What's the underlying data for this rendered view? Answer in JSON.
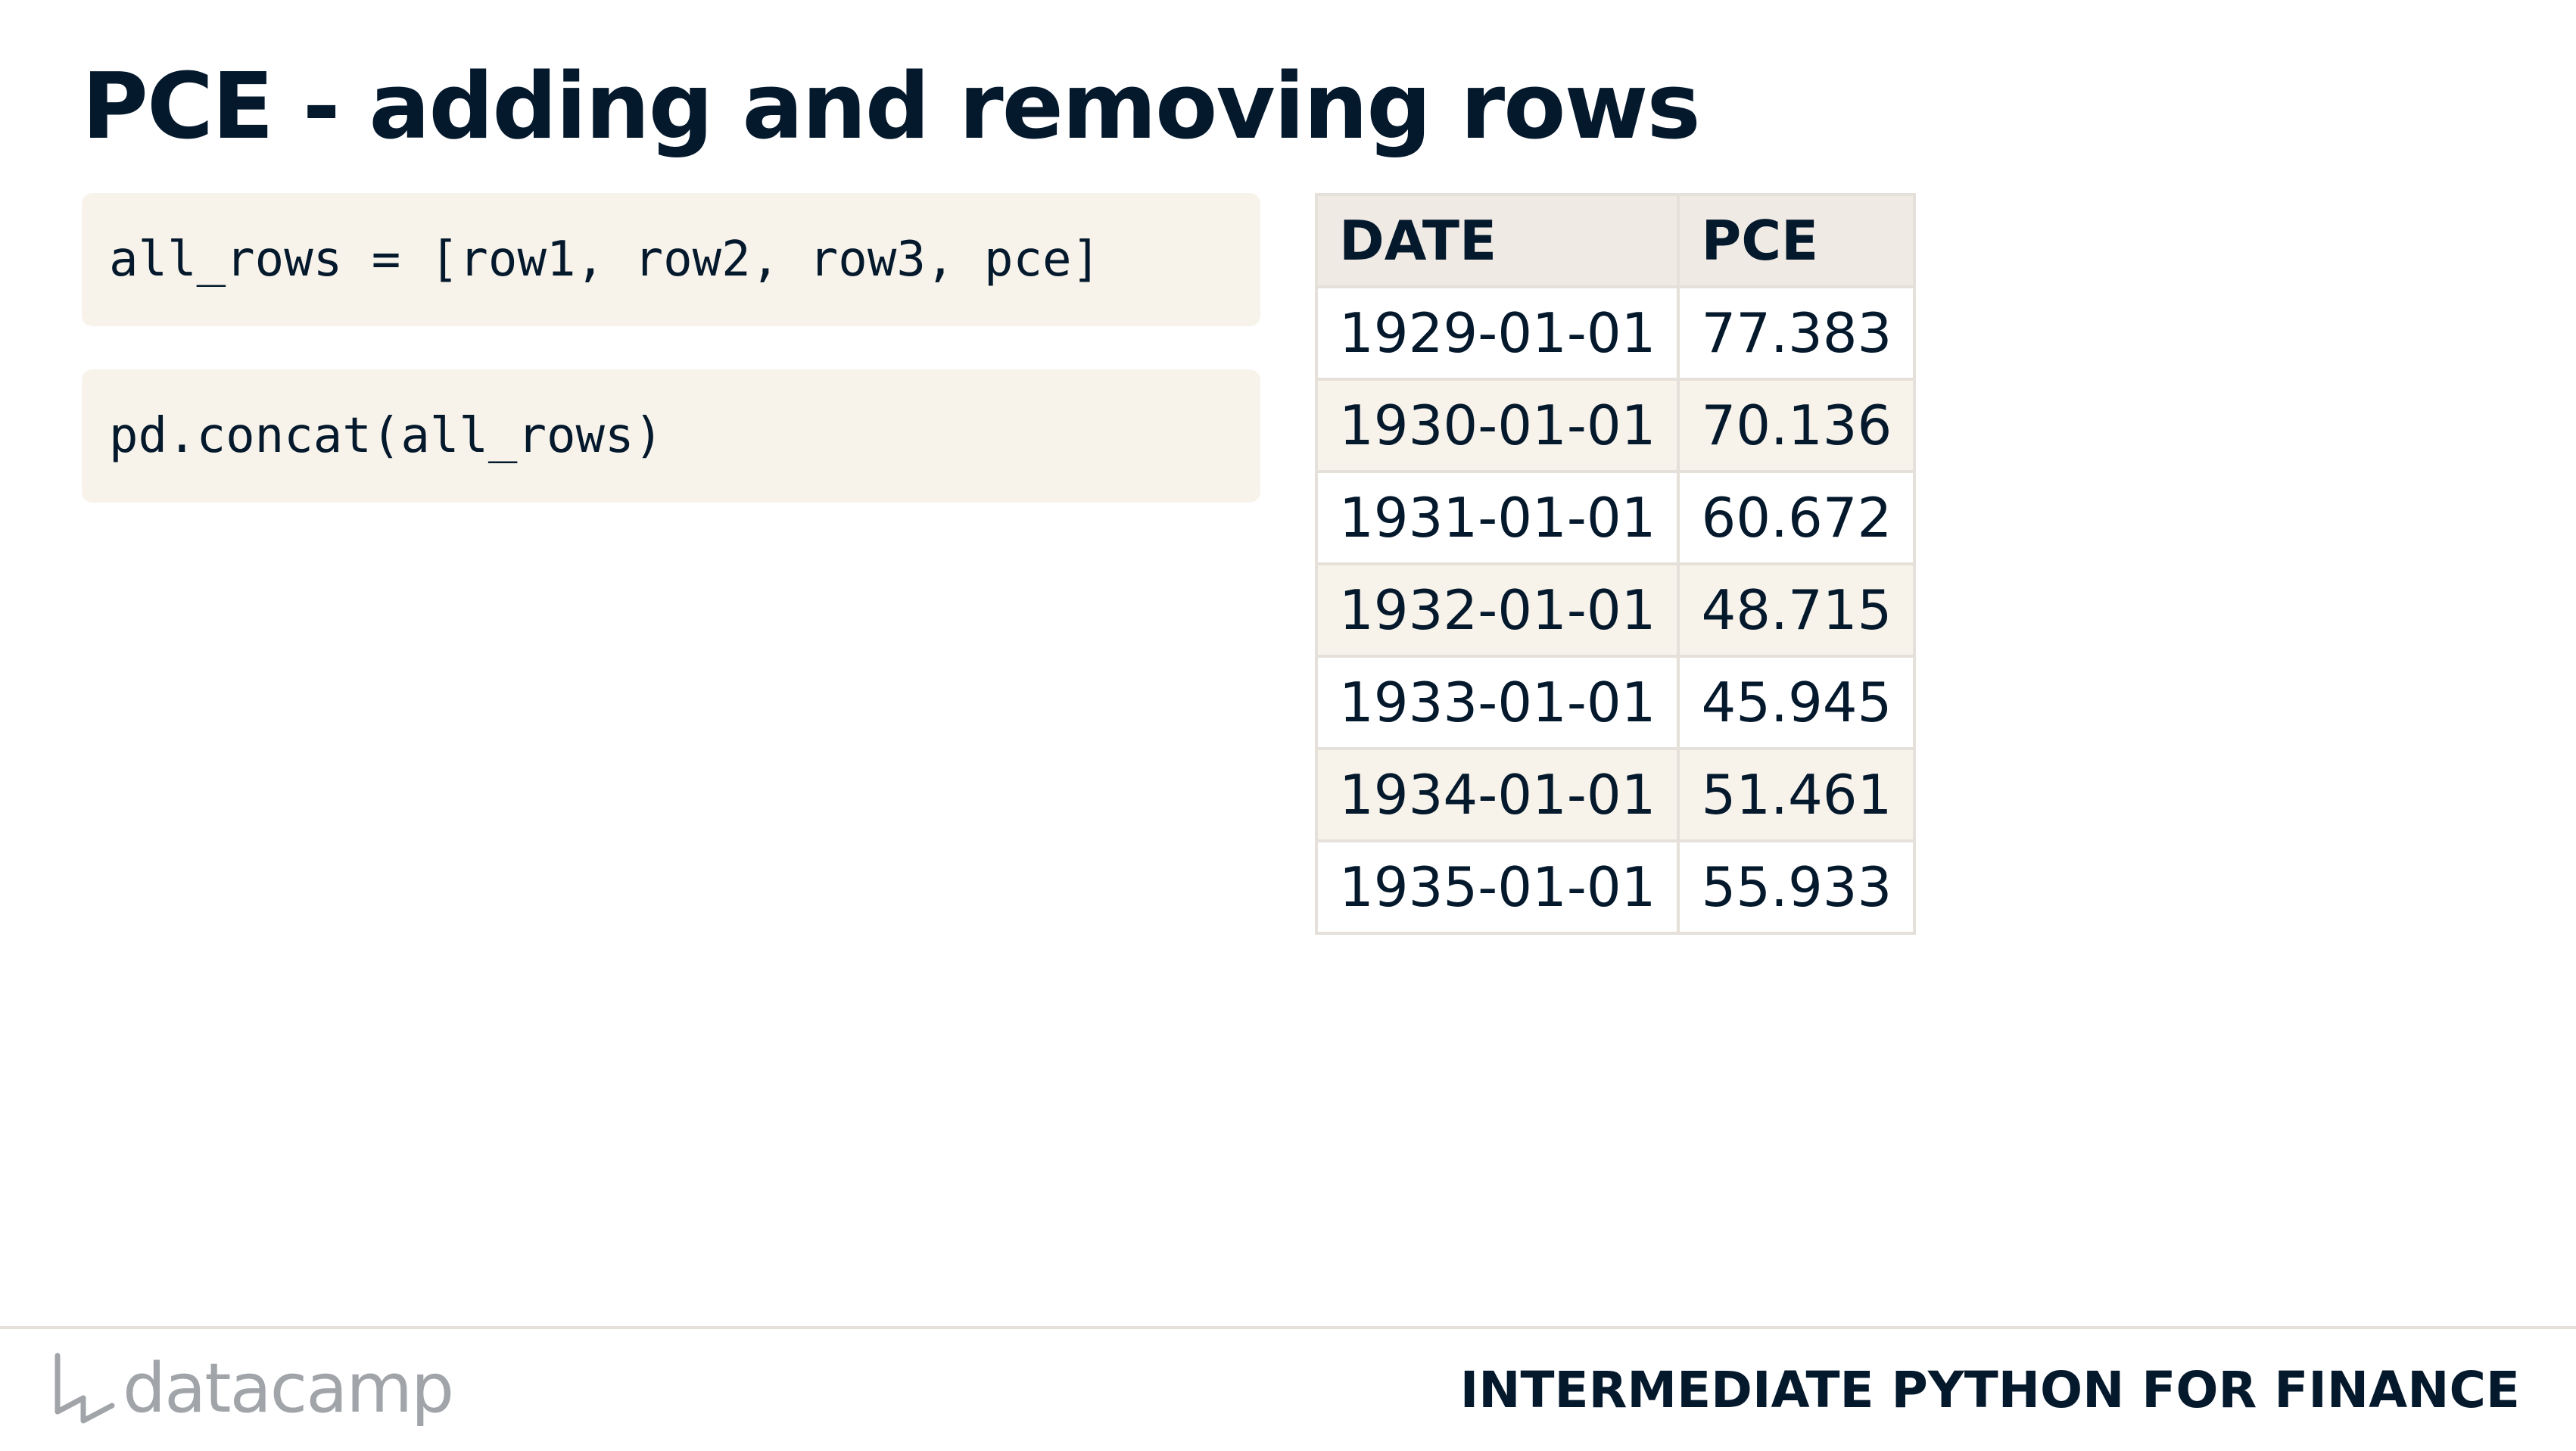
{
  "slide": {
    "title": "PCE - adding and removing rows"
  },
  "code_blocks": [
    {
      "code": "all_rows = [row1, row2, row3, pce]"
    },
    {
      "code": "pd.concat(all_rows)"
    }
  ],
  "table": {
    "columns": [
      "DATE",
      "PCE"
    ],
    "rows": [
      [
        "1929-01-01",
        "77.383"
      ],
      [
        "1930-01-01",
        "70.136"
      ],
      [
        "1931-01-01",
        "60.672"
      ],
      [
        "1932-01-01",
        "48.715"
      ],
      [
        "1933-01-01",
        "45.945"
      ],
      [
        "1934-01-01",
        "51.461"
      ],
      [
        "1935-01-01",
        "55.933"
      ]
    ]
  },
  "footer": {
    "logo_text": "datacamp",
    "logo_icon": "datacamp-logo-icon",
    "course_title": "INTERMEDIATE PYTHON FOR FINANCE"
  },
  "colors": {
    "text": "#05192d",
    "code_background": "#f7f3eb",
    "table_header_background": "#efebe4",
    "table_border": "#e5e1da",
    "logo_gray": "#a1a4a9"
  }
}
